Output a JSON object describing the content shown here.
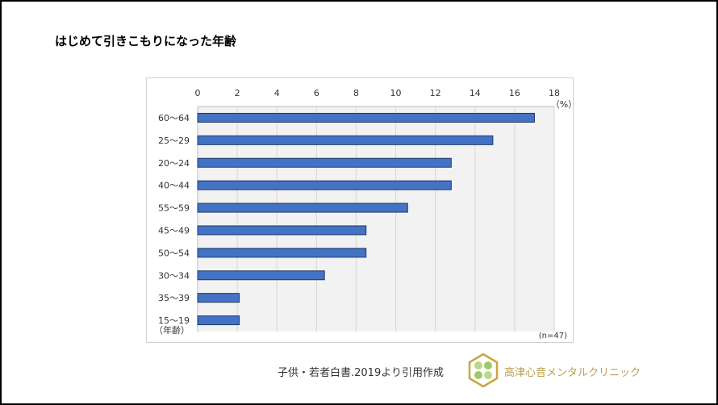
{
  "title": "はじめて引きこもりになった年齢",
  "chart_data": {
    "type": "bar",
    "orientation": "horizontal",
    "title": "はじめて引きこもりになった年齢",
    "categories": [
      "60～64",
      "25～29",
      "20～24",
      "40～44",
      "55～59",
      "45～49",
      "50～54",
      "30～34",
      "35～39",
      "15～19"
    ],
    "values": [
      17.0,
      14.9,
      12.8,
      12.8,
      10.6,
      8.5,
      8.5,
      6.4,
      2.1,
      2.1
    ],
    "xlabel": "（%）",
    "ylabel": "（年齢）",
    "xlim": [
      0,
      18
    ],
    "xticks": [
      0,
      2,
      4,
      6,
      8,
      10,
      12,
      14,
      16,
      18
    ],
    "grid": true,
    "axis_position": "top",
    "annotation": "(n=47)",
    "bar_color": "#4472c4",
    "bar_edge_color": "#1f3864"
  },
  "footer": {
    "citation": "子供・若者白書.2019より引用作成",
    "clinic_name": "高津心音メンタルクリニック"
  }
}
